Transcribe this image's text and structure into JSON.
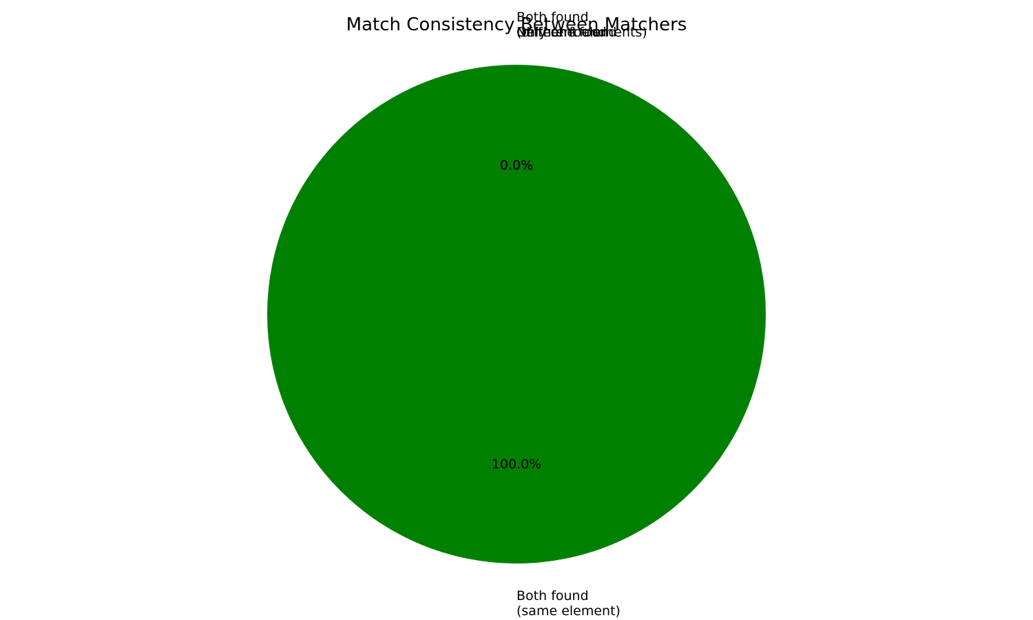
{
  "chart_data": {
    "type": "pie",
    "title": "Match Consistency Between Matchers",
    "slices": [
      {
        "label": "Both found\n(same element)",
        "value": 100.0,
        "percent_label": "100.0%",
        "color": "#008000"
      },
      {
        "label": "Both found\n(different elements)",
        "value": 0.0,
        "percent_label": "0.0%",
        "color": "#ff0000"
      },
      {
        "label": "Only one found",
        "value": 0.0,
        "percent_label": "0.0%",
        "color": "#ffa500"
      },
      {
        "label": "Neither found",
        "value": 0.0,
        "percent_label": "0.0%",
        "color": "#808080"
      }
    ],
    "start_angle_deg": 90,
    "direction": "counterclockwise",
    "legend": "none"
  }
}
